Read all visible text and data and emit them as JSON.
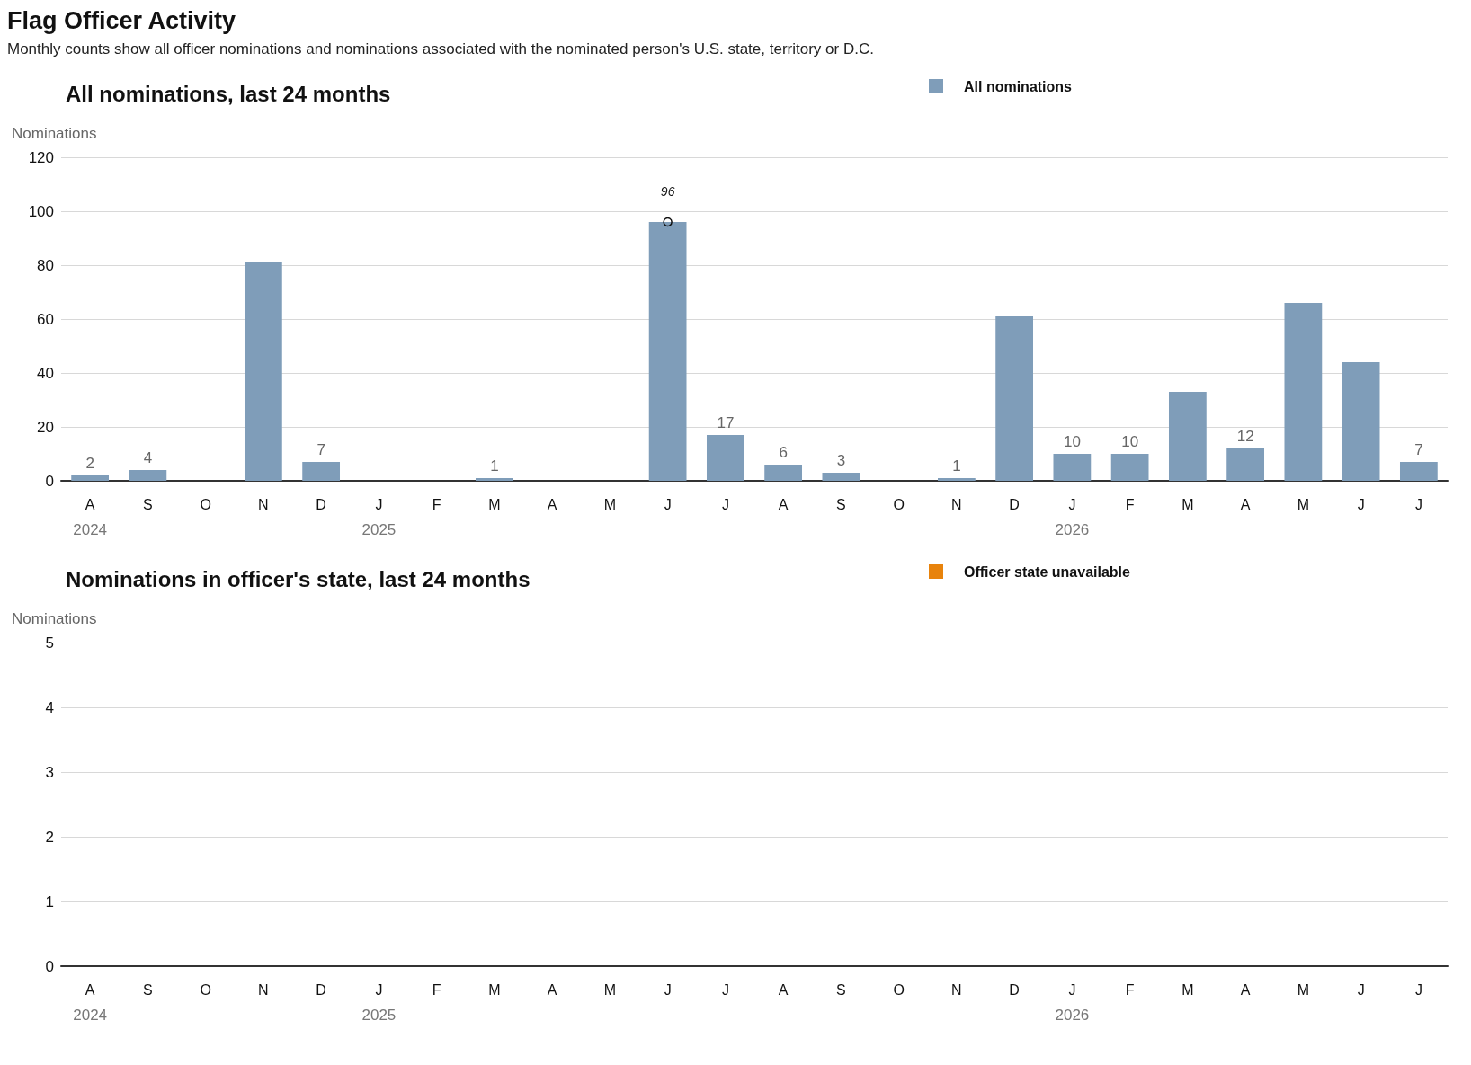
{
  "chart_data": [
    {
      "type": "other",
      "title": "Flag Officer Activity",
      "subtitle": "Monthly counts show all officer nominations and nominations associated with the nominated person's U.S. state, territory or D.C."
    },
    {
      "type": "bar",
      "title": "All nominations, last 24 months",
      "ylabel": "Nominations",
      "categories": [
        "A\n2024",
        "S",
        "O",
        "N",
        "D",
        "J\n2025",
        "F",
        "M",
        "A",
        "M",
        "J",
        "J",
        "A",
        "S",
        "O",
        "N",
        "D",
        "J\n2026",
        "F",
        "M",
        "A",
        "M",
        "J",
        "J"
      ],
      "series": [
        {
          "name": "All nominations",
          "color": "#7f9db9",
          "values": [
            2,
            4,
            0,
            81,
            7,
            0,
            0,
            1,
            0,
            0,
            96,
            17,
            6,
            3,
            0,
            1,
            61,
            10,
            10,
            33,
            12,
            66,
            44,
            7
          ],
          "value_labels": [
            "2",
            "4",
            null,
            null,
            "7",
            null,
            null,
            "1",
            null,
            null,
            null,
            "17",
            "6",
            "3",
            null,
            "1",
            null,
            "10",
            "10",
            null,
            "12",
            null,
            null,
            "7"
          ]
        }
      ],
      "ylim": [
        0,
        120
      ],
      "yticks": [
        0,
        20,
        40,
        60,
        80,
        100,
        120
      ],
      "grid": "y",
      "legend": "top right",
      "annotations": [
        {
          "text": "96",
          "x": "J",
          "y": 96
        }
      ]
    },
    {
      "type": "bar",
      "title": "Nominations in officer's state, last 24 months",
      "ylabel": "Nominations",
      "categories": [
        "A\n2024",
        "S",
        "O",
        "N",
        "D",
        "J\n2025",
        "F",
        "M",
        "A",
        "M",
        "J",
        "J",
        "A",
        "S",
        "O",
        "N",
        "D",
        "J\n2026",
        "F",
        "M",
        "A",
        "M",
        "J",
        "J"
      ],
      "series": [
        {
          "name": "Officer state unavailable",
          "color": "#e8830c",
          "values": [
            null,
            null,
            null,
            null,
            null,
            null,
            null,
            null,
            null,
            null,
            null,
            null,
            null,
            null,
            null,
            null,
            null,
            null,
            null,
            null,
            null,
            null,
            null,
            null
          ]
        }
      ],
      "ylim": [
        0,
        5
      ],
      "yticks": [
        0,
        1,
        2,
        3,
        4,
        5
      ],
      "grid": "y",
      "legend": "top right"
    }
  ]
}
